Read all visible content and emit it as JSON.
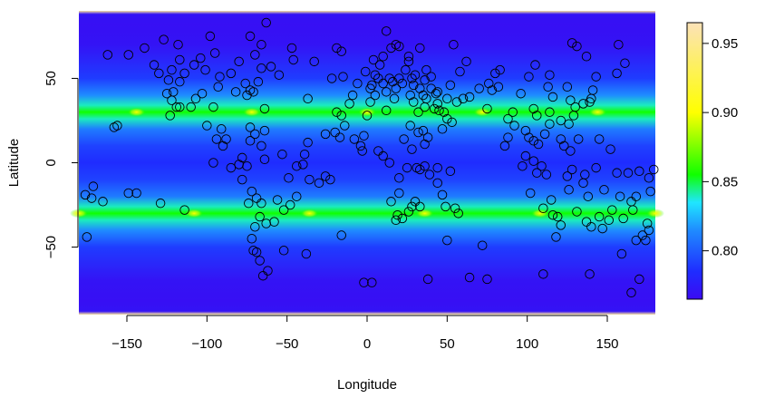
{
  "chart_data": {
    "type": "heatmap",
    "xlabel": "Longitude",
    "ylabel": "Latitude",
    "xlim": [
      -180,
      180
    ],
    "ylim": [
      -90,
      90
    ],
    "x_ticks": [
      -150,
      -100,
      -50,
      0,
      50,
      100,
      150
    ],
    "y_ticks": [
      -50,
      0,
      50
    ],
    "x_tick_labels": [
      "−150",
      "−100",
      "−50",
      "0",
      "50",
      "100",
      "150"
    ],
    "y_tick_labels": [
      "−50",
      "0",
      "50"
    ],
    "colorbar": {
      "range": [
        0.765,
        0.965
      ],
      "ticks": [
        0.8,
        0.85,
        0.9,
        0.95
      ],
      "tick_labels": [
        "0.80",
        "0.85",
        "0.90",
        "0.95"
      ],
      "colors": {
        "low": "#3b0af2",
        "blue": "#1f2cff",
        "mid_blue": "#1f8cff",
        "cyan": "#1fe6ff",
        "green": "#10ff00",
        "yellow": "#ffff00",
        "peach": "#fce2b8"
      }
    },
    "field_profile": [
      {
        "lat": -90,
        "value": 0.955
      },
      {
        "lat": -88,
        "value": 0.77
      },
      {
        "lat": -82,
        "value": 0.768
      },
      {
        "lat": -70,
        "value": 0.77
      },
      {
        "lat": -50,
        "value": 0.79
      },
      {
        "lat": -40,
        "value": 0.815
      },
      {
        "lat": -34,
        "value": 0.84
      },
      {
        "lat": -30,
        "value": 0.855
      },
      {
        "lat": -26,
        "value": 0.84
      },
      {
        "lat": -20,
        "value": 0.81
      },
      {
        "lat": -10,
        "value": 0.792
      },
      {
        "lat": 0,
        "value": 0.785
      },
      {
        "lat": 10,
        "value": 0.792
      },
      {
        "lat": 20,
        "value": 0.81
      },
      {
        "lat": 26,
        "value": 0.84
      },
      {
        "lat": 30,
        "value": 0.855
      },
      {
        "lat": 34,
        "value": 0.84
      },
      {
        "lat": 40,
        "value": 0.815
      },
      {
        "lat": 50,
        "value": 0.79
      },
      {
        "lat": 70,
        "value": 0.77
      },
      {
        "lat": 82,
        "value": 0.768
      },
      {
        "lat": 88,
        "value": 0.77
      },
      {
        "lat": 90,
        "value": 0.955
      }
    ],
    "hotspots": [
      {
        "lon": -144,
        "lat": 30
      },
      {
        "lon": -72,
        "lat": 30
      },
      {
        "lon": 0,
        "lat": 30
      },
      {
        "lon": 72,
        "lat": 30
      },
      {
        "lon": 144,
        "lat": 30
      },
      {
        "lon": -180,
        "lat": -30
      },
      {
        "lon": -108,
        "lat": -30
      },
      {
        "lon": -36,
        "lat": -30
      },
      {
        "lon": 36,
        "lat": -30
      },
      {
        "lon": 108,
        "lat": -30
      },
      {
        "lon": 180,
        "lat": -30
      }
    ],
    "points": [
      [
        -149,
        64
      ],
      [
        -139,
        68
      ],
      [
        -118,
        70
      ],
      [
        -98,
        75
      ],
      [
        -95,
        65
      ],
      [
        -117,
        61
      ],
      [
        -108,
        58
      ],
      [
        -101,
        55
      ],
      [
        -92,
        51
      ],
      [
        -80,
        60
      ],
      [
        -73,
        75
      ],
      [
        -63,
        83
      ],
      [
        -66,
        70
      ],
      [
        -70,
        64
      ],
      [
        -60,
        57
      ],
      [
        -66,
        56
      ],
      [
        -68,
        48
      ],
      [
        -76,
        47
      ],
      [
        -73,
        43
      ],
      [
        -82,
        42
      ],
      [
        -64,
        32
      ],
      [
        -55,
        52
      ],
      [
        -47,
        68
      ],
      [
        -46,
        61
      ],
      [
        -33,
        60
      ],
      [
        -37,
        38
      ],
      [
        -22,
        50
      ],
      [
        -19,
        68
      ],
      [
        -16,
        66
      ],
      [
        -15,
        51
      ],
      [
        -19,
        30
      ],
      [
        -16,
        28
      ],
      [
        -11,
        35
      ],
      [
        -6,
        47
      ],
      [
        -9,
        40
      ],
      [
        -14,
        22
      ],
      [
        -17,
        15
      ],
      [
        -20,
        18
      ],
      [
        -23,
        -10
      ],
      [
        -16,
        -43
      ],
      [
        -130,
        53
      ],
      [
        -124,
        49
      ],
      [
        -125,
        41
      ],
      [
        -122,
        37
      ],
      [
        -119,
        33
      ],
      [
        -117,
        33
      ],
      [
        -123,
        28
      ],
      [
        -110,
        33
      ],
      [
        -103,
        41
      ],
      [
        -100,
        22
      ],
      [
        -94,
        14
      ],
      [
        -90,
        10
      ],
      [
        -96,
        0
      ],
      [
        -85,
        -3
      ],
      [
        -75,
        -2
      ],
      [
        -78,
        3
      ],
      [
        -73,
        21
      ],
      [
        -70,
        17
      ],
      [
        -64,
        19
      ],
      [
        -66,
        10
      ],
      [
        -64,
        2
      ],
      [
        -72,
        -17
      ],
      [
        -69,
        -21
      ],
      [
        -67,
        -32
      ],
      [
        -74,
        -24
      ],
      [
        -70,
        -38
      ],
      [
        -72,
        -45
      ],
      [
        -71,
        -52
      ],
      [
        -69,
        -53
      ],
      [
        -67,
        -58
      ],
      [
        -65,
        -67
      ],
      [
        -62,
        -64
      ],
      [
        -58,
        -35
      ],
      [
        -56,
        -22
      ],
      [
        -52,
        -28
      ],
      [
        -48,
        -25
      ],
      [
        -52,
        -52
      ],
      [
        -40,
        -1
      ],
      [
        -44,
        -2
      ],
      [
        -30,
        -12
      ],
      [
        -37,
        12
      ],
      [
        -26,
        17
      ],
      [
        -26,
        -8
      ],
      [
        -156,
        22
      ],
      [
        -158,
        21
      ],
      [
        -176,
        -19
      ],
      [
        -171,
        -14
      ],
      [
        -172,
        -21
      ],
      [
        -165,
        -23
      ],
      [
        -149,
        -18
      ],
      [
        -129,
        -24
      ],
      [
        -114,
        -28
      ],
      [
        -175,
        -44
      ],
      [
        -144,
        -18
      ],
      [
        2,
        44
      ],
      [
        5,
        52
      ],
      [
        7,
        50
      ],
      [
        10,
        47
      ],
      [
        12,
        42
      ],
      [
        14,
        50
      ],
      [
        16,
        48
      ],
      [
        18,
        44
      ],
      [
        20,
        50
      ],
      [
        22,
        47
      ],
      [
        24,
        55
      ],
      [
        26,
        60
      ],
      [
        28,
        50
      ],
      [
        30,
        52
      ],
      [
        8,
        58
      ],
      [
        4,
        61
      ],
      [
        10,
        63
      ],
      [
        15,
        68
      ],
      [
        18,
        70
      ],
      [
        12,
        78
      ],
      [
        20,
        69
      ],
      [
        26,
        63
      ],
      [
        29,
        46
      ],
      [
        33,
        44
      ],
      [
        36,
        49
      ],
      [
        37,
        55
      ],
      [
        40,
        51
      ],
      [
        43,
        41
      ],
      [
        45,
        31
      ],
      [
        44,
        42
      ],
      [
        48,
        30
      ],
      [
        50,
        26
      ],
      [
        53,
        24
      ],
      [
        37,
        38
      ],
      [
        36,
        33
      ],
      [
        32,
        30
      ],
      [
        27,
        22
      ],
      [
        35,
        19
      ],
      [
        38,
        15
      ],
      [
        31,
        -3
      ],
      [
        33,
        -4
      ],
      [
        36,
        -2
      ],
      [
        39,
        -7
      ],
      [
        44,
        -12
      ],
      [
        47,
        -19
      ],
      [
        49,
        -26
      ],
      [
        55,
        -27
      ],
      [
        57,
        -30
      ],
      [
        50,
        -46
      ],
      [
        18,
        -34
      ],
      [
        19,
        -31
      ],
      [
        22,
        -33
      ],
      [
        26,
        -29
      ],
      [
        28,
        -26
      ],
      [
        30,
        -23
      ],
      [
        33,
        -26
      ],
      [
        15,
        -23
      ],
      [
        20,
        -9
      ],
      [
        25,
        -3
      ],
      [
        14,
        0
      ],
      [
        10,
        4
      ],
      [
        7,
        7
      ],
      [
        -3,
        7
      ],
      [
        -4,
        10
      ],
      [
        -8,
        14
      ],
      [
        3,
        -71
      ],
      [
        -2,
        -71
      ],
      [
        38,
        -69
      ],
      [
        64,
        -68
      ],
      [
        75,
        -69
      ],
      [
        72,
        -49
      ],
      [
        47,
        20
      ],
      [
        50,
        38
      ],
      [
        56,
        36
      ],
      [
        60,
        38
      ],
      [
        70,
        44
      ],
      [
        78,
        43
      ],
      [
        75,
        32
      ],
      [
        83,
        55
      ],
      [
        88,
        26
      ],
      [
        92,
        22
      ],
      [
        96,
        41
      ],
      [
        88,
        15
      ],
      [
        86,
        10
      ],
      [
        99,
        19
      ],
      [
        101,
        15
      ],
      [
        104,
        13
      ],
      [
        107,
        11
      ],
      [
        99,
        4
      ],
      [
        104,
        1
      ],
      [
        109,
        -2
      ],
      [
        106,
        -6
      ],
      [
        97,
        -2
      ],
      [
        102,
        -18
      ],
      [
        112,
        -7
      ],
      [
        115,
        -22
      ],
      [
        119,
        -32
      ],
      [
        121,
        -37
      ],
      [
        118,
        -44
      ],
      [
        110,
        -27
      ],
      [
        116,
        -31
      ],
      [
        125,
        -8
      ],
      [
        128,
        -4
      ],
      [
        136,
        -7
      ],
      [
        143,
        -3
      ],
      [
        148,
        -16
      ],
      [
        145,
        -32
      ],
      [
        151,
        -34
      ],
      [
        153,
        -28
      ],
      [
        147,
        -39
      ],
      [
        140,
        -38
      ],
      [
        139,
        -66
      ],
      [
        110,
        -66
      ],
      [
        159,
        -54
      ],
      [
        172,
        -43
      ],
      [
        175,
        -36
      ],
      [
        176,
        -40
      ],
      [
        174,
        -46
      ],
      [
        168,
        -46
      ],
      [
        165,
        -23
      ],
      [
        166,
        -28
      ],
      [
        168,
        -20
      ],
      [
        177,
        -17
      ],
      [
        179,
        -4
      ],
      [
        176,
        -9
      ],
      [
        170,
        -5
      ],
      [
        163,
        -6
      ],
      [
        156,
        -6
      ],
      [
        152,
        8
      ],
      [
        145,
        14
      ],
      [
        132,
        14
      ],
      [
        127,
        7
      ],
      [
        123,
        10
      ],
      [
        121,
        14
      ],
      [
        121,
        25
      ],
      [
        126,
        23
      ],
      [
        129,
        28
      ],
      [
        130,
        33
      ],
      [
        135,
        35
      ],
      [
        139,
        36
      ],
      [
        140,
        38
      ],
      [
        141,
        43
      ],
      [
        143,
        51
      ],
      [
        156,
        53
      ],
      [
        161,
        59
      ],
      [
        137,
        63
      ],
      [
        125,
        45
      ],
      [
        127,
        37
      ],
      [
        114,
        30
      ],
      [
        114,
        23
      ],
      [
        111,
        17
      ],
      [
        106,
        28
      ],
      [
        104,
        32
      ],
      [
        116,
        39
      ],
      [
        113,
        45
      ],
      [
        114,
        52
      ],
      [
        105,
        58
      ],
      [
        101,
        51
      ],
      [
        91,
        30
      ],
      [
        82,
        45
      ],
      [
        157,
        70
      ],
      [
        131,
        69
      ],
      [
        128,
        71
      ],
      [
        170,
        -69
      ],
      [
        165,
        -77
      ],
      [
        126,
        -16
      ],
      [
        135,
        -12
      ],
      [
        138,
        -20
      ],
      [
        131,
        -29
      ],
      [
        137,
        -35
      ],
      [
        158,
        -20
      ],
      [
        160,
        -33
      ],
      [
        -88,
        14
      ],
      [
        -91,
        20
      ],
      [
        -66,
        -24
      ],
      [
        -63,
        -36
      ],
      [
        -49,
        -9
      ],
      [
        -44,
        -20
      ],
      [
        -38,
        -54
      ],
      [
        -36,
        -10
      ],
      [
        -39,
        5
      ],
      [
        -80,
        -1
      ],
      [
        -78,
        -10
      ],
      [
        -73,
        13
      ],
      [
        -75,
        40
      ],
      [
        -71,
        42
      ],
      [
        -85,
        53
      ],
      [
        -93,
        45
      ],
      [
        -107,
        38
      ],
      [
        -117,
        48
      ],
      [
        -121,
        42
      ],
      [
        -114,
        53
      ],
      [
        -96,
        33
      ],
      [
        -122,
        55
      ],
      [
        -133,
        58
      ],
      [
        -162,
        64
      ],
      [
        -127,
        73
      ],
      [
        -104,
        62
      ],
      [
        -53,
        5
      ],
      [
        -2,
        16
      ],
      [
        0,
        28
      ],
      [
        2,
        36
      ],
      [
        3,
        46
      ],
      [
        -1,
        54
      ],
      [
        5,
        40
      ],
      [
        12,
        31
      ],
      [
        17,
        38
      ],
      [
        27,
        40
      ],
      [
        29,
        36
      ],
      [
        35,
        40
      ],
      [
        42,
        32
      ],
      [
        44,
        35
      ],
      [
        52,
        46
      ],
      [
        58,
        54
      ],
      [
        64,
        39
      ],
      [
        76,
        47
      ],
      [
        80,
        53
      ],
      [
        62,
        60
      ],
      [
        54,
        70
      ],
      [
        33,
        68
      ],
      [
        40,
        44
      ],
      [
        23,
        14
      ],
      [
        28,
        8
      ],
      [
        32,
        18
      ],
      [
        36,
        11
      ],
      [
        20,
        -18
      ],
      [
        44,
        -3
      ],
      [
        52,
        -5
      ]
    ]
  }
}
